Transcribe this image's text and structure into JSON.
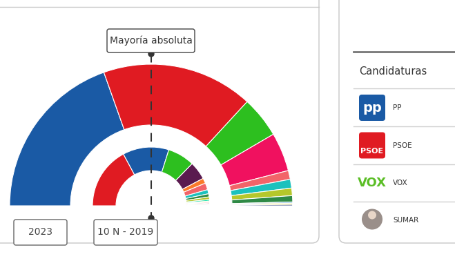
{
  "chart_data": {
    "type": "hemicycle",
    "majority_label": "Mayoría absoluta",
    "rings": [
      {
        "label": "2023",
        "seats": [
          137,
          121,
          33,
          31,
          7,
          7,
          6,
          5,
          1,
          1,
          1
        ],
        "colors": [
          "#1a5aa5",
          "#e01b22",
          "#2dbf1f",
          "#f0115f",
          "#f26469",
          "#1bc1bd",
          "#b5c72b",
          "#2f8a46",
          "#76b4e0",
          "#f0d800",
          "#233a80"
        ]
      },
      {
        "label": "10 N - 2019",
        "seats": [
          120,
          89,
          52,
          35,
          10,
          13,
          8,
          6,
          5,
          3,
          2,
          2,
          2,
          1,
          1,
          1
        ],
        "colors": [
          "#e01b22",
          "#1a5aa5",
          "#2dbf1f",
          "#5a1a4f",
          "#fa7a2a",
          "#f26469",
          "#1bc1bd",
          "#2f8a46",
          "#b5c72b",
          "#0fdea8",
          "#f0d800",
          "#f4a3c0",
          "#c8102e",
          "#76b4e0",
          "#6aa84f",
          "#233a80"
        ]
      }
    ],
    "candidates_panel": {
      "title": "Candidaturas",
      "entries": [
        {
          "name": "PP",
          "logo": "pp",
          "color": "#1a5aa5"
        },
        {
          "name": "PSOE",
          "logo": "PSOE",
          "color": "#e01b22"
        },
        {
          "name": "VOX",
          "logo": "VOX",
          "color": "#5bbe26"
        },
        {
          "name": "SUMAR",
          "color": "#9a8f8a"
        }
      ]
    }
  }
}
